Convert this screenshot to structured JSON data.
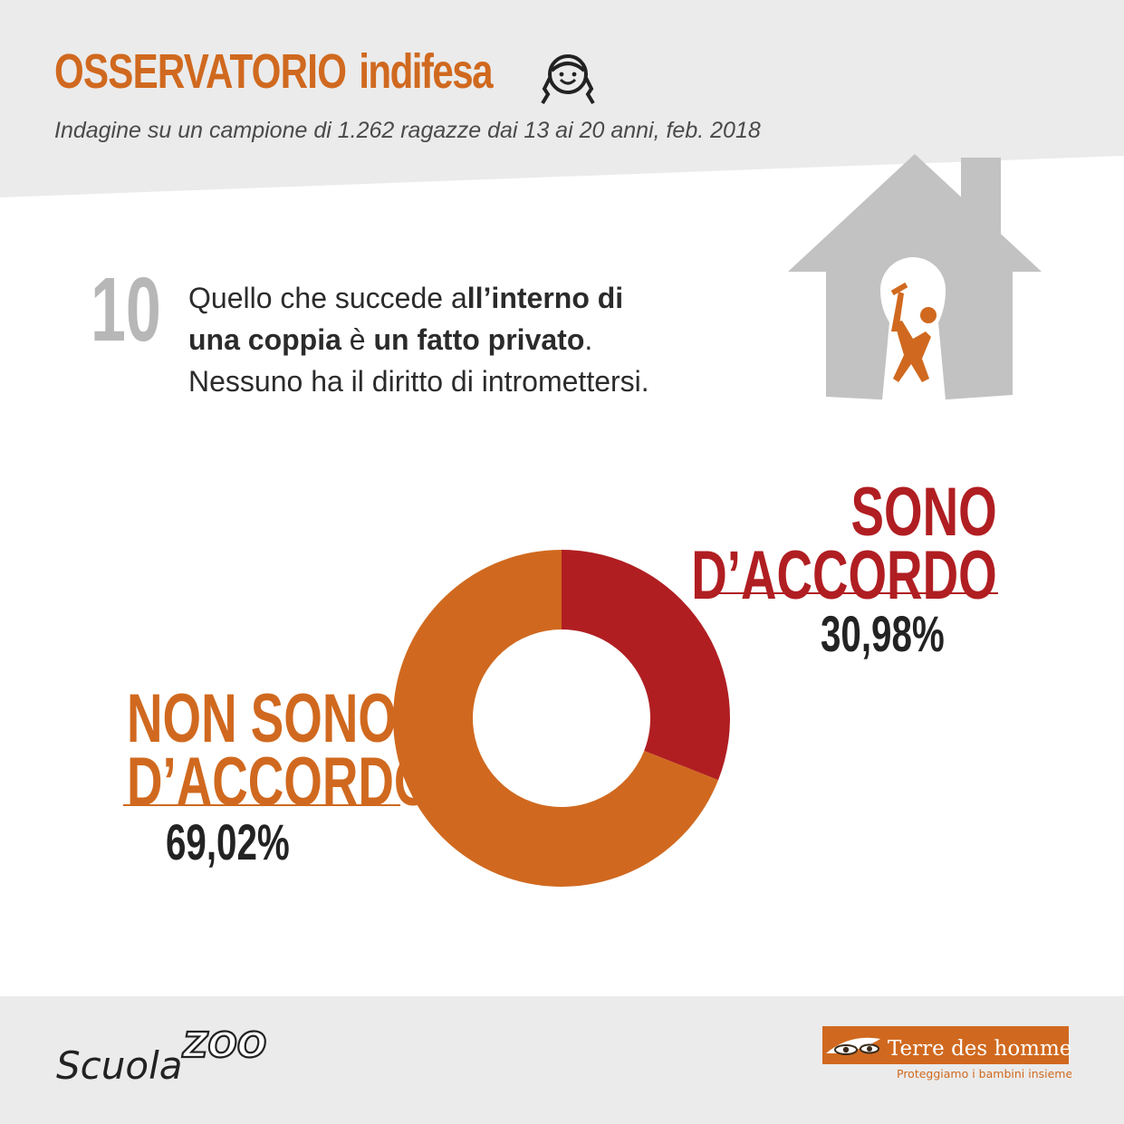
{
  "header": {
    "title_part1": "OSSERVATORIO",
    "title_part2": "indifesa",
    "subtitle": "Indagine su un campione di 1.262 ragazze dai 13 ai 20 anni, feb. 2018"
  },
  "question": {
    "number": "10",
    "line1_a": "Quello che succede a",
    "line1_b": "ll’interno di",
    "line2_a": "una coppia",
    "line2_b": " è ",
    "line2_c": "un fatto privato",
    "line2_d": ".",
    "line3": "Nessuno ha il diritto di intromettersi."
  },
  "chart_data": {
    "type": "pie",
    "variant": "donut",
    "categories": [
      "SONO D’ACCORDO",
      "NON SONO D’ACCORDO"
    ],
    "values": [
      30.98,
      69.02
    ],
    "value_labels": [
      "30,98%",
      "69,02%"
    ],
    "label_lines": [
      [
        "SONO",
        "D’ACCORDO"
      ],
      [
        "NON SONO",
        "D’ACCORDO"
      ]
    ],
    "colors": [
      "#b01e22",
      "#d0691f"
    ]
  },
  "colors": {
    "accent_orange": "#d0691f",
    "accent_red": "#b01e22",
    "background_grey": "#ebebeb",
    "panel_white": "#ffffff"
  },
  "footer": {
    "scuolazoo_text_1": "Scuola",
    "scuolazoo_text_2": "ZOO",
    "tdh_name": "Terre des hommes",
    "tdh_tagline": "Proteggiamo i bambini insieme"
  },
  "icons": [
    "girl-face-icon",
    "house-keyhole-icon",
    "aggressor-figure-icon",
    "tdh-eyes-icon"
  ]
}
